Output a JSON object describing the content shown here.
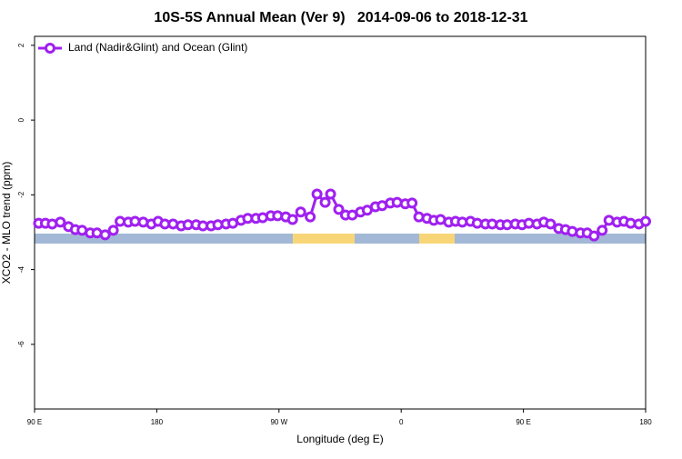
{
  "chart_data": {
    "type": "line",
    "title": "10S-5S Annual Mean (Ver 9)   2014-09-06 to 2018-12-31",
    "x_label": "Longitude (deg E)",
    "y_label": "XCO2 - MLO trend (ppm)",
    "xlim": [
      90,
      540
    ],
    "ylim": [
      -7.73,
      2.24
    ],
    "xticks": [
      {
        "value": 90,
        "label": "90 E"
      },
      {
        "value": 180,
        "label": "180"
      },
      {
        "value": 270,
        "label": "90 W"
      },
      {
        "value": 360,
        "label": "0"
      },
      {
        "value": 450,
        "label": "90 E"
      },
      {
        "value": 540,
        "label": "180"
      }
    ],
    "yticks": [
      2,
      0,
      -2,
      -4,
      -6
    ],
    "legend": "top-left",
    "series": [
      {
        "name": "Land (Nadir&Glint) and Ocean (Glint)",
        "color": "#a020f0",
        "x": [
          93,
          98,
          103,
          109,
          115,
          120,
          125,
          131,
          136,
          142,
          148,
          153,
          159,
          164,
          170,
          176,
          181,
          186,
          192,
          198,
          203,
          209,
          214,
          220,
          225,
          231,
          236,
          242,
          247,
          253,
          258,
          264,
          269,
          275,
          280,
          286,
          293,
          298,
          304,
          308,
          314,
          319,
          324,
          330,
          335,
          341,
          346,
          352,
          357,
          363,
          368,
          373,
          379,
          384,
          389,
          395,
          400,
          405,
          411,
          416,
          422,
          427,
          433,
          438,
          444,
          449,
          454,
          460,
          465,
          470,
          476,
          481,
          486,
          492,
          497,
          502,
          508,
          513,
          519,
          524,
          529,
          535,
          540
        ],
        "values": [
          -2.76,
          -2.76,
          -2.78,
          -2.73,
          -2.85,
          -2.93,
          -2.95,
          -3.02,
          -3.02,
          -3.07,
          -2.95,
          -2.71,
          -2.73,
          -2.71,
          -2.73,
          -2.78,
          -2.71,
          -2.78,
          -2.78,
          -2.83,
          -2.8,
          -2.8,
          -2.83,
          -2.83,
          -2.8,
          -2.78,
          -2.76,
          -2.68,
          -2.63,
          -2.63,
          -2.61,
          -2.56,
          -2.56,
          -2.59,
          -2.66,
          -2.46,
          -2.59,
          -1.98,
          -2.2,
          -1.98,
          -2.39,
          -2.54,
          -2.54,
          -2.46,
          -2.41,
          -2.32,
          -2.29,
          -2.22,
          -2.2,
          -2.24,
          -2.22,
          -2.59,
          -2.63,
          -2.68,
          -2.66,
          -2.73,
          -2.71,
          -2.73,
          -2.71,
          -2.76,
          -2.78,
          -2.78,
          -2.8,
          -2.8,
          -2.78,
          -2.8,
          -2.76,
          -2.78,
          -2.73,
          -2.78,
          -2.9,
          -2.93,
          -2.98,
          -3.02,
          -3.02,
          -3.1,
          -2.95,
          -2.68,
          -2.73,
          -2.71,
          -2.76,
          -2.78,
          -2.71
        ]
      }
    ]
  }
}
